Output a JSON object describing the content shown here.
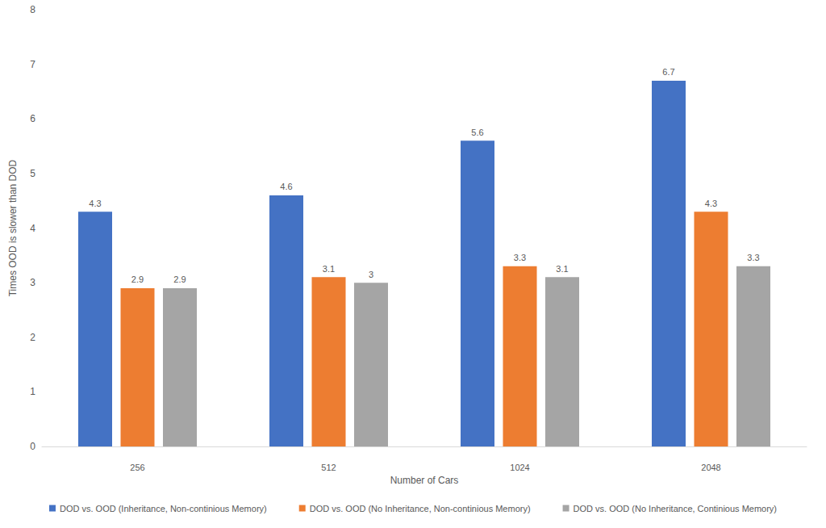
{
  "chart_data": {
    "type": "bar",
    "x_label": "Number of Cars",
    "y_label": "Times OOD is slower than DOD",
    "categories": [
      "256",
      "512",
      "1024",
      "2048"
    ],
    "series": [
      {
        "name": "DOD vs. OOD (Inheritance, Non-continious Memory)",
        "color": "#4472c4",
        "values": [
          4.3,
          4.6,
          5.6,
          6.7
        ]
      },
      {
        "name": "DOD vs. OOD (No Inheritance, Non-continious Memory)",
        "color": "#ed7d31",
        "values": [
          2.9,
          3.1,
          3.3,
          4.3
        ]
      },
      {
        "name": "DOD vs. OOD (No Inheritance, Continious Memory)",
        "color": "#a5a5a5",
        "values": [
          2.9,
          3,
          3.1,
          3.3
        ]
      }
    ],
    "ylim": [
      0,
      8
    ],
    "yticks": [
      0,
      1,
      2,
      3,
      4,
      5,
      6,
      7,
      8
    ],
    "grid": false,
    "legend": "bottom",
    "data_labels": true
  }
}
